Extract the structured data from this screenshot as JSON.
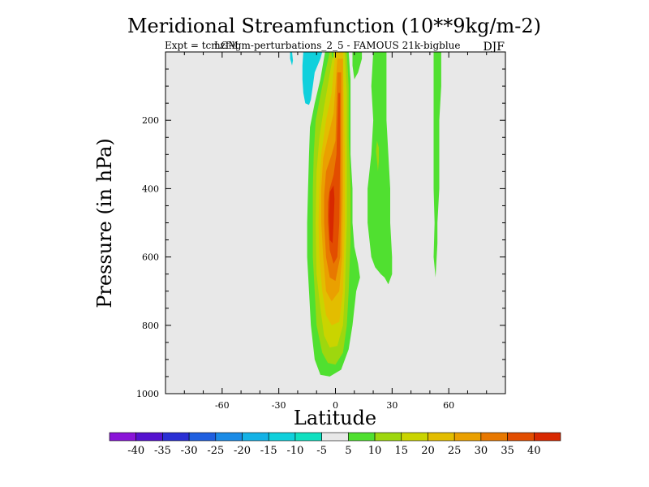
{
  "chart_data": {
    "type": "heatmap",
    "title": "Meridional Streamfunction (10**9kg/m-2)",
    "subtitle_left": "Expt = tcmzf-lgm-perturbations_2_5 - FAMOUS 21k-bigblue",
    "subtitle_overlay": "LGM",
    "season": "DJF",
    "xlabel": "Latitude",
    "ylabel": "Pressure (in hPa)",
    "xlim": [
      -90,
      90
    ],
    "ylim": [
      1000,
      0
    ],
    "x_ticks": [
      {
        "value": -60,
        "label": "-60"
      },
      {
        "value": -30,
        "label": "-30"
      },
      {
        "value": 0,
        "label": "0"
      },
      {
        "value": 30,
        "label": "30"
      },
      {
        "value": 60,
        "label": "60"
      }
    ],
    "y_ticks": [
      {
        "value": 200,
        "label": "200"
      },
      {
        "value": 400,
        "label": "400"
      },
      {
        "value": 600,
        "label": "600"
      },
      {
        "value": 800,
        "label": "800"
      },
      {
        "value": 1000,
        "label": "1000"
      }
    ],
    "background_color": "#e8e8e8",
    "colorbar": {
      "colors": [
        "#8a14d8",
        "#5512cf",
        "#2a2fd4",
        "#1f5fe0",
        "#1b8be6",
        "#14b2e6",
        "#10d0dc",
        "#10e0c0",
        "#e8e8e8",
        "#50e030",
        "#9ed70e",
        "#cad400",
        "#e3bd00",
        "#eaa000",
        "#e87800",
        "#e24d00",
        "#d82800"
      ],
      "labels": [
        "-40",
        "-35",
        "-30",
        "-25",
        "-20",
        "-15",
        "-10",
        "-5",
        "5",
        "10",
        "15",
        "20",
        "25",
        "30",
        "35",
        "40"
      ]
    },
    "contour_regions": [
      {
        "level": "5 to 10",
        "color": "#50e030",
        "points": [
          [
            -5.5,
            0
          ],
          [
            7,
            0
          ],
          [
            8,
            80
          ],
          [
            8,
            200
          ],
          [
            8,
            300
          ],
          [
            9,
            400
          ],
          [
            9,
            500
          ],
          [
            10,
            570
          ],
          [
            12,
            620
          ],
          [
            13,
            660
          ],
          [
            11,
            700
          ],
          [
            9,
            800
          ],
          [
            7,
            870
          ],
          [
            3,
            930
          ],
          [
            -3,
            950
          ],
          [
            -8,
            945
          ],
          [
            -11,
            900
          ],
          [
            -13,
            800
          ],
          [
            -14,
            700
          ],
          [
            -15,
            600
          ],
          [
            -15,
            500
          ],
          [
            -14.5,
            400
          ],
          [
            -14,
            300
          ],
          [
            -13.5,
            220
          ],
          [
            -11,
            150
          ],
          [
            -8,
            80
          ]
        ]
      },
      {
        "level": "10 to 15",
        "color": "#9ed70e",
        "points": [
          [
            -3,
            0
          ],
          [
            6,
            0
          ],
          [
            7,
            100
          ],
          [
            7,
            250
          ],
          [
            8,
            400
          ],
          [
            8,
            550
          ],
          [
            7,
            700
          ],
          [
            6,
            800
          ],
          [
            4,
            880
          ],
          [
            0,
            915
          ],
          [
            -4,
            910
          ],
          [
            -7,
            880
          ],
          [
            -10,
            800
          ],
          [
            -11,
            700
          ],
          [
            -12,
            600
          ],
          [
            -12,
            500
          ],
          [
            -12,
            400
          ],
          [
            -11.5,
            300
          ],
          [
            -10.5,
            200
          ],
          [
            -7,
            100
          ]
        ]
      },
      {
        "level": "15 to 20",
        "color": "#cad400",
        "points": [
          [
            -1,
            0
          ],
          [
            5,
            0
          ],
          [
            6,
            120
          ],
          [
            6,
            300
          ],
          [
            6,
            500
          ],
          [
            5,
            700
          ],
          [
            4,
            800
          ],
          [
            1,
            860
          ],
          [
            -3,
            865
          ],
          [
            -6,
            830
          ],
          [
            -8,
            750
          ],
          [
            -10,
            650
          ],
          [
            -10.5,
            500
          ],
          [
            -10,
            350
          ],
          [
            -8.5,
            250
          ],
          [
            -6,
            160
          ]
        ]
      },
      {
        "level": "20 to 25",
        "color": "#e3bd00",
        "points": [
          [
            0,
            0
          ],
          [
            4,
            0
          ],
          [
            4.5,
            150
          ],
          [
            5,
            300
          ],
          [
            5,
            500
          ],
          [
            4,
            700
          ],
          [
            2,
            790
          ],
          [
            -2,
            800
          ],
          [
            -5,
            770
          ],
          [
            -7,
            700
          ],
          [
            -8.5,
            600
          ],
          [
            -9,
            500
          ],
          [
            -8.5,
            400
          ],
          [
            -7.5,
            300
          ],
          [
            -5,
            200
          ],
          [
            -2,
            120
          ]
        ]
      },
      {
        "level": "25 to 30",
        "color": "#eaa000",
        "points": [
          [
            1,
            20
          ],
          [
            4,
            20
          ],
          [
            4,
            200
          ],
          [
            4,
            400
          ],
          [
            3.5,
            600
          ],
          [
            2,
            700
          ],
          [
            -2,
            730
          ],
          [
            -5,
            700
          ],
          [
            -6.5,
            600
          ],
          [
            -7.5,
            500
          ],
          [
            -7.5,
            400
          ],
          [
            -6.5,
            310
          ],
          [
            -4,
            250
          ],
          [
            -1,
            180
          ]
        ]
      },
      {
        "level": "30 to 35",
        "color": "#e87800",
        "points": [
          [
            1,
            60
          ],
          [
            3,
            60
          ],
          [
            3,
            250
          ],
          [
            3,
            450
          ],
          [
            2.5,
            600
          ],
          [
            0,
            670
          ],
          [
            -3,
            660
          ],
          [
            -5,
            600
          ],
          [
            -6,
            500
          ],
          [
            -6,
            420
          ],
          [
            -5,
            350
          ],
          [
            -2,
            300
          ],
          [
            0,
            260
          ]
        ]
      },
      {
        "level": "35 to 40",
        "color": "#e24d00",
        "points": [
          [
            1.5,
            120
          ],
          [
            2.5,
            120
          ],
          [
            2.5,
            300
          ],
          [
            2,
            500
          ],
          [
            1,
            600
          ],
          [
            -1,
            620
          ],
          [
            -3,
            580
          ],
          [
            -4,
            500
          ],
          [
            -4,
            440
          ],
          [
            -3,
            400
          ],
          [
            -1,
            360
          ],
          [
            0.5,
            300
          ]
        ]
      },
      {
        "level": "40+",
        "color": "#d82800",
        "points": [
          [
            -3,
            410
          ],
          [
            -1,
            390
          ],
          [
            -0.5,
            430
          ],
          [
            -1,
            500
          ],
          [
            -1.5,
            560
          ],
          [
            -3,
            550
          ],
          [
            -3.5,
            480
          ]
        ]
      },
      {
        "level": "5 to 10",
        "color": "#50e030",
        "points": [
          [
            20,
            0
          ],
          [
            27,
            0
          ],
          [
            27,
            100
          ],
          [
            27,
            200
          ],
          [
            28,
            300
          ],
          [
            29,
            400
          ],
          [
            29,
            500
          ],
          [
            30,
            600
          ],
          [
            30,
            650
          ],
          [
            28,
            680
          ],
          [
            26,
            660
          ],
          [
            24,
            650
          ],
          [
            21,
            630
          ],
          [
            19,
            600
          ],
          [
            17,
            500
          ],
          [
            17,
            400
          ],
          [
            19,
            300
          ],
          [
            20,
            200
          ],
          [
            19,
            100
          ]
        ]
      },
      {
        "level": "10 to 15",
        "color": "#9ed70e",
        "points": [
          [
            22,
            260
          ],
          [
            23,
            280
          ],
          [
            23,
            320
          ],
          [
            22.5,
            350
          ],
          [
            22,
            320
          ],
          [
            21.5,
            290
          ]
        ]
      },
      {
        "level": "5 to 10",
        "color": "#50e030",
        "points": [
          [
            52,
            0
          ],
          [
            56,
            0
          ],
          [
            56,
            100
          ],
          [
            55,
            200
          ],
          [
            55,
            300
          ],
          [
            55,
            400
          ],
          [
            54,
            500
          ],
          [
            54,
            560
          ],
          [
            53,
            660
          ],
          [
            52,
            600
          ],
          [
            52.5,
            500
          ],
          [
            52,
            400
          ],
          [
            52,
            300
          ],
          [
            52,
            200
          ],
          [
            52,
            100
          ]
        ]
      },
      {
        "level": "-5 to -10",
        "color": "#10d0dc",
        "points": [
          [
            -17,
            0
          ],
          [
            -7,
            0
          ],
          [
            -8,
            20
          ],
          [
            -11,
            60
          ],
          [
            -12,
            100
          ],
          [
            -13,
            140
          ],
          [
            -14,
            155
          ],
          [
            -16,
            150
          ],
          [
            -17,
            120
          ],
          [
            -17.5,
            80
          ],
          [
            -17.5,
            40
          ]
        ]
      },
      {
        "level": "-5 to -10",
        "color": "#10d0dc",
        "points": [
          [
            -24,
            0
          ],
          [
            -23,
            0
          ],
          [
            -22.5,
            25
          ],
          [
            -23,
            40
          ],
          [
            -24,
            20
          ]
        ]
      },
      {
        "level": "5 to 10",
        "color": "#50e030",
        "points": [
          [
            -2,
            0
          ],
          [
            -1,
            0
          ],
          [
            -1,
            20
          ],
          [
            -2,
            10
          ]
        ]
      },
      {
        "level": "5 to 10",
        "color": "#50e030",
        "points": [
          [
            9,
            0
          ],
          [
            14,
            0
          ],
          [
            14,
            20
          ],
          [
            12,
            60
          ],
          [
            10,
            80
          ],
          [
            9,
            40
          ]
        ]
      }
    ]
  }
}
